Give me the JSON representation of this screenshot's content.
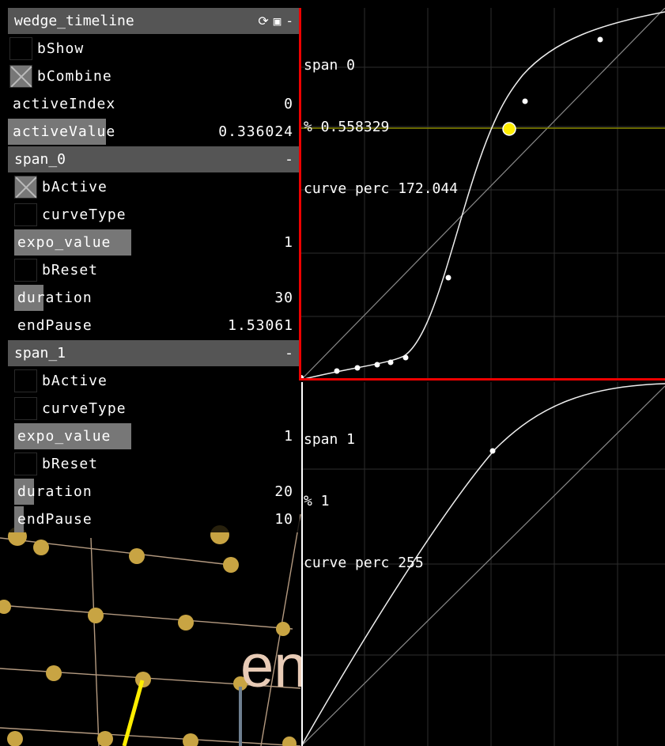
{
  "panel": {
    "title": "wedge_timeline",
    "header_icons": [
      "refresh-icon",
      "save-icon",
      "minimize-icon"
    ],
    "minimize_glyph": "-",
    "bShow": {
      "label": "bShow",
      "checked": false
    },
    "bCombine": {
      "label": "bCombine",
      "checked": true
    },
    "activeIndex": {
      "label": "activeIndex",
      "value": "0"
    },
    "activeValue": {
      "label": "activeValue",
      "value": "0.336024",
      "fraction": 0.336024
    },
    "span_0": {
      "title": "span_0",
      "bActive": {
        "label": "bActive",
        "checked": true
      },
      "curveType": {
        "label": "curveType",
        "checked": false
      },
      "expo_value": {
        "label": "expo_value",
        "value": "1",
        "fraction": 0.4
      },
      "bReset": {
        "label": "bReset",
        "checked": false
      },
      "duration": {
        "label": "duration",
        "value": "30",
        "fraction": 0.1
      },
      "endPause": {
        "label": "endPause",
        "value": "1.53061",
        "fraction": 0.0
      }
    },
    "span_1": {
      "title": "span_1",
      "bActive": {
        "label": "bActive",
        "checked": false
      },
      "curveType": {
        "label": "curveType",
        "checked": false
      },
      "expo_value": {
        "label": "expo_value",
        "value": "1",
        "fraction": 0.4
      },
      "bReset": {
        "label": "bReset",
        "checked": false
      },
      "duration": {
        "label": "duration",
        "value": "20",
        "fraction": 0.067
      },
      "endPause": {
        "label": "endPause",
        "value": "10",
        "fraction": 0.033
      }
    }
  },
  "graph0": {
    "title": "span 0",
    "pct": "% 0.558329",
    "curve": "curve perc 172.044",
    "active_y": 0.336
  },
  "graph1": {
    "title": "span 1",
    "pct": "% 1",
    "curve": "curve perc 255"
  },
  "background_text": "en",
  "colors": {
    "panel_header": "#555555",
    "slider_fill": "#777777",
    "highlight": "#e00000",
    "marker": "#ffee00",
    "dots": "#c8a443",
    "grid": "#333333"
  }
}
